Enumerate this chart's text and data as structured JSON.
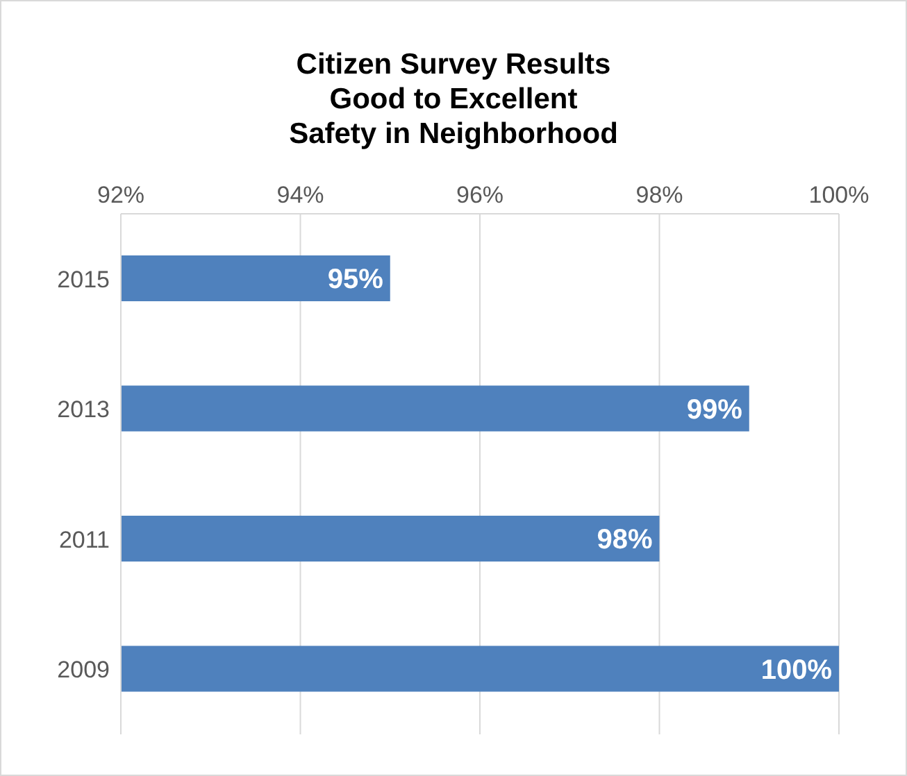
{
  "chart_data": {
    "type": "bar",
    "orientation": "horizontal",
    "title": "Citizen Survey Results\nGood to Excellent\nSafety in Neighborhood",
    "categories": [
      "2015",
      "2013",
      "2011",
      "2009"
    ],
    "values": [
      95,
      99,
      98,
      100
    ],
    "color": "#4f81bd",
    "value_labels": [
      "95%",
      "99%",
      "98%",
      "100%"
    ],
    "xlim": [
      92,
      100
    ],
    "xticks": [
      {
        "value": 92,
        "label": "92%"
      },
      {
        "value": 94,
        "label": "94%"
      },
      {
        "value": 96,
        "label": "96%"
      },
      {
        "value": 98,
        "label": "98%"
      },
      {
        "value": 100,
        "label": "100%"
      }
    ],
    "grid": "x",
    "legend": false
  }
}
